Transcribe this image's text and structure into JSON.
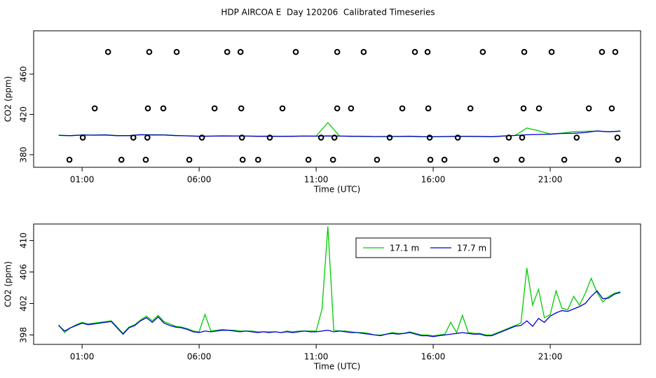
{
  "chart_data": [
    {
      "type": "line",
      "title": "HDP AIRCOA E  Day 120206  Calibrated Timeseries",
      "xlabel": "Time (UTC)",
      "ylabel": "CO2 (ppm)",
      "x": [
        0,
        0.5,
        1,
        1.5,
        2,
        2.5,
        3,
        3.5,
        4,
        4.5,
        5,
        5.5,
        6,
        6.5,
        7,
        7.5,
        8,
        8.5,
        9,
        9.5,
        10,
        10.5,
        11,
        11.5,
        12,
        12.5,
        13,
        13.5,
        14,
        14.5,
        15,
        15.5,
        16,
        16.5,
        17,
        17.5,
        18,
        18.5,
        19,
        19.5,
        20,
        20.5,
        21,
        21.5,
        22,
        22.5,
        23,
        23.5,
        24
      ],
      "series": [
        {
          "color": "#00cc00",
          "values": [
            399.3,
            398.9,
            399.6,
            399.5,
            399.7,
            399.0,
            399.0,
            399.9,
            399.8,
            399.7,
            399.1,
            398.8,
            398.4,
            398.5,
            398.7,
            398.6,
            398.5,
            398.4,
            398.4,
            398.3,
            398.4,
            398.5,
            398.5,
            411.8,
            398.5,
            398.4,
            398.3,
            398.0,
            398.1,
            398.2,
            398.4,
            398.0,
            397.9,
            398.1,
            398.3,
            398.3,
            398.2,
            398.0,
            398.6,
            399.2,
            406.5,
            403.8,
            400.6,
            401.4,
            402.9,
            403.3,
            403.4,
            402.9,
            403.5
          ]
        },
        {
          "color": "#0000cc",
          "values": [
            399.2,
            398.9,
            399.5,
            399.4,
            399.6,
            398.9,
            398.9,
            399.8,
            399.6,
            399.5,
            399.0,
            398.7,
            398.3,
            398.4,
            398.6,
            398.5,
            398.5,
            398.3,
            398.3,
            398.3,
            398.3,
            398.5,
            398.4,
            398.6,
            398.5,
            398.3,
            398.2,
            398.0,
            398.1,
            398.1,
            398.3,
            397.9,
            397.8,
            398.0,
            398.2,
            398.2,
            398.1,
            397.9,
            398.5,
            399.1,
            399.8,
            400.1,
            400.4,
            401.1,
            401.3,
            402.0,
            403.6,
            402.7,
            403.4
          ]
        },
        {
          "type": "scatter",
          "color": "#000000",
          "x": [
            2.11,
            3.87,
            5.04,
            7.2,
            7.77,
            10.13,
            11.9,
            13.03,
            15.22,
            15.76,
            18.12,
            19.89,
            21.06,
            23.21,
            23.78,
            1.54,
            3.81,
            4.47,
            6.66,
            7.8,
            9.56,
            11.9,
            12.49,
            14.68,
            15.79,
            17.59,
            19.86,
            20.52,
            22.65,
            23.63,
            1.03,
            3.19,
            3.79,
            6.12,
            7.83,
            9.02,
            11.21,
            11.78,
            14.14,
            15.85,
            17.05,
            19.23,
            19.8,
            22.13,
            23.87,
            0.46,
            2.68,
            3.72,
            5.58,
            7.86,
            8.52,
            10.67,
            11.72,
            13.6,
            15.88,
            16.48,
            18.7,
            19.78,
            21.6,
            23.9
          ],
          "values": [
            482,
            482,
            482,
            482,
            482,
            482,
            482,
            482,
            482,
            482,
            482,
            482,
            482,
            482,
            482,
            426,
            426,
            426,
            426,
            426,
            426,
            426,
            426,
            426,
            426,
            426,
            426,
            426,
            426,
            426,
            397,
            397,
            397,
            397,
            397,
            397,
            397,
            397,
            397,
            397,
            397,
            397,
            397,
            397,
            397,
            375,
            375,
            375,
            375,
            375,
            375,
            375,
            375,
            375,
            375,
            375,
            375,
            375,
            375,
            375
          ]
        }
      ],
      "xlim": [
        -1.07,
        24.86
      ],
      "ylim": [
        367.5,
        503
      ],
      "xticks": [
        {
          "value": 1,
          "label": "01:00"
        },
        {
          "value": 6,
          "label": "06:00"
        },
        {
          "value": 11,
          "label": "11:00"
        },
        {
          "value": 16,
          "label": "16:00"
        },
        {
          "value": 21,
          "label": "21:00"
        }
      ],
      "yticks": [
        380,
        420,
        460
      ]
    },
    {
      "type": "line",
      "xlabel": "Time (UTC)",
      "ylabel": "CO2 (ppm)",
      "legend": "top",
      "x": [
        0,
        0.25,
        0.5,
        0.75,
        1,
        1.25,
        1.5,
        1.75,
        2,
        2.25,
        2.5,
        2.75,
        3,
        3.25,
        3.5,
        3.75,
        4,
        4.25,
        4.5,
        4.75,
        5,
        5.25,
        5.5,
        5.75,
        6,
        6.25,
        6.5,
        6.75,
        7,
        7.25,
        7.5,
        7.75,
        8,
        8.25,
        8.5,
        8.75,
        9,
        9.25,
        9.5,
        9.75,
        10,
        10.25,
        10.5,
        10.75,
        11,
        11.25,
        11.5,
        11.75,
        12,
        12.25,
        12.5,
        12.75,
        13,
        13.25,
        13.5,
        13.75,
        14,
        14.25,
        14.5,
        14.75,
        15,
        15.25,
        15.5,
        15.75,
        16,
        16.25,
        16.5,
        16.75,
        17,
        17.25,
        17.5,
        17.75,
        18,
        18.25,
        18.5,
        18.75,
        19,
        19.25,
        19.5,
        19.75,
        20,
        20.25,
        20.5,
        20.75,
        21,
        21.25,
        21.5,
        21.75,
        22,
        22.25,
        22.5,
        22.75,
        23,
        23.25,
        23.5,
        23.75,
        24
      ],
      "series": [
        {
          "name": "17.1 m",
          "color": "#00cc00",
          "values": [
            399.3,
            398.3,
            398.9,
            399.3,
            399.6,
            399.4,
            399.5,
            399.6,
            399.7,
            399.8,
            399.0,
            398.2,
            399.0,
            399.3,
            399.9,
            400.4,
            399.8,
            400.5,
            399.7,
            399.4,
            399.1,
            399.0,
            398.8,
            398.5,
            398.4,
            400.6,
            398.5,
            398.6,
            398.7,
            398.6,
            398.6,
            398.5,
            398.5,
            398.5,
            398.4,
            398.4,
            398.4,
            398.4,
            398.3,
            398.5,
            398.4,
            398.5,
            398.5,
            398.5,
            398.5,
            401.3,
            411.8,
            398.6,
            398.5,
            398.5,
            398.4,
            398.3,
            398.3,
            398.2,
            398.0,
            398.0,
            398.1,
            398.3,
            398.2,
            398.2,
            398.4,
            398.2,
            398.0,
            398.0,
            397.9,
            398.0,
            398.1,
            399.6,
            398.3,
            400.5,
            398.3,
            398.2,
            398.2,
            398.0,
            398.0,
            398.3,
            398.6,
            398.9,
            399.2,
            399.5,
            406.5,
            401.8,
            403.8,
            400.2,
            400.6,
            403.6,
            401.4,
            401.2,
            402.9,
            401.8,
            403.3,
            405.2,
            403.4,
            402.2,
            402.9,
            403.3,
            403.5
          ]
        },
        {
          "name": "17.7 m",
          "color": "#0000cc",
          "values": [
            399.2,
            398.5,
            398.9,
            399.2,
            399.5,
            399.3,
            399.4,
            399.5,
            399.6,
            399.7,
            398.9,
            398.1,
            398.9,
            399.2,
            399.8,
            400.2,
            399.6,
            400.3,
            399.5,
            399.2,
            399.0,
            398.9,
            398.7,
            398.4,
            398.3,
            398.5,
            398.4,
            398.5,
            398.6,
            398.6,
            398.5,
            398.4,
            398.5,
            398.4,
            398.3,
            398.4,
            398.3,
            398.4,
            398.3,
            398.4,
            398.3,
            398.4,
            398.5,
            398.4,
            398.4,
            398.5,
            398.6,
            398.4,
            398.5,
            398.4,
            398.3,
            398.3,
            398.2,
            398.1,
            398.0,
            397.9,
            398.1,
            398.2,
            398.1,
            398.2,
            398.3,
            398.1,
            397.9,
            397.9,
            397.8,
            397.9,
            398.0,
            398.1,
            398.2,
            398.3,
            398.2,
            398.1,
            398.1,
            397.9,
            397.9,
            398.2,
            398.5,
            398.8,
            399.1,
            399.2,
            399.8,
            399.1,
            400.1,
            399.6,
            400.4,
            400.8,
            401.1,
            401.0,
            401.3,
            401.6,
            402.0,
            402.9,
            403.6,
            402.6,
            402.7,
            403.2,
            403.4
          ]
        }
      ],
      "xlim": [
        -1.07,
        24.86
      ],
      "ylim": [
        396.8,
        412.1
      ],
      "xticks": [
        {
          "value": 1,
          "label": "01:00"
        },
        {
          "value": 6,
          "label": "06:00"
        },
        {
          "value": 11,
          "label": "11:00"
        },
        {
          "value": 16,
          "label": "16:00"
        },
        {
          "value": 21,
          "label": "21:00"
        }
      ],
      "yticks": [
        398,
        402,
        406,
        410
      ]
    }
  ]
}
